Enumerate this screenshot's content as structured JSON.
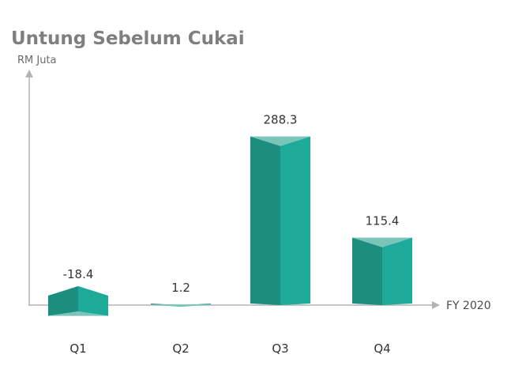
{
  "chart_data": {
    "type": "bar",
    "title": "Untung Sebelum Cukai",
    "ylabel": "RM Juta",
    "xlabel": "FY 2020",
    "categories": [
      "Q1",
      "Q2",
      "Q3",
      "Q4"
    ],
    "values": [
      -18.4,
      1.2,
      288.3,
      115.4
    ],
    "data_labels": [
      "-18.4",
      "1.2",
      "288.3",
      "115.4"
    ],
    "ylim": [
      -40,
      340
    ],
    "grid": false,
    "colors": {
      "front": "#1daa98",
      "side": "#1b8e80",
      "top": "#7bc4b9",
      "axis": "#b3b3b3"
    }
  }
}
